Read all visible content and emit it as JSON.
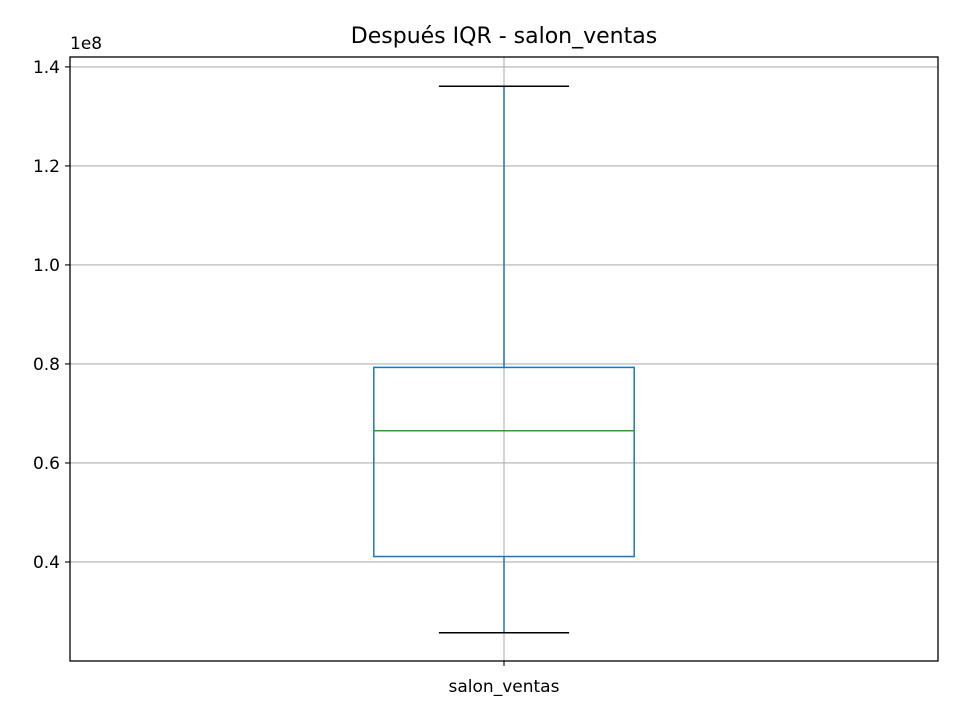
{
  "chart_data": {
    "type": "box",
    "title": "Después IQR - salon_ventas",
    "xlabel": "",
    "ylabel": "",
    "scale_offset_label": "1e8",
    "categories": [
      "salon_ventas"
    ],
    "ylim": [
      0.2,
      1.42
    ],
    "yticks": [
      0.4,
      0.6,
      0.8,
      1.0,
      1.2,
      1.4
    ],
    "ytick_labels": [
      "0.4",
      "0.6",
      "0.8",
      "1.0",
      "1.2",
      "1.4"
    ],
    "grid": true,
    "boxes": [
      {
        "category": "salon_ventas",
        "whisker_low": 0.257,
        "q1": 0.411,
        "median": 0.665,
        "q3": 0.793,
        "whisker_high": 1.361
      }
    ],
    "colors": {
      "box": "#1f77b4",
      "whisker": "#1f77b4",
      "cap": "#000000",
      "median": "#2ca02c",
      "grid": "#b0b0b0",
      "axes": "#000000"
    }
  }
}
